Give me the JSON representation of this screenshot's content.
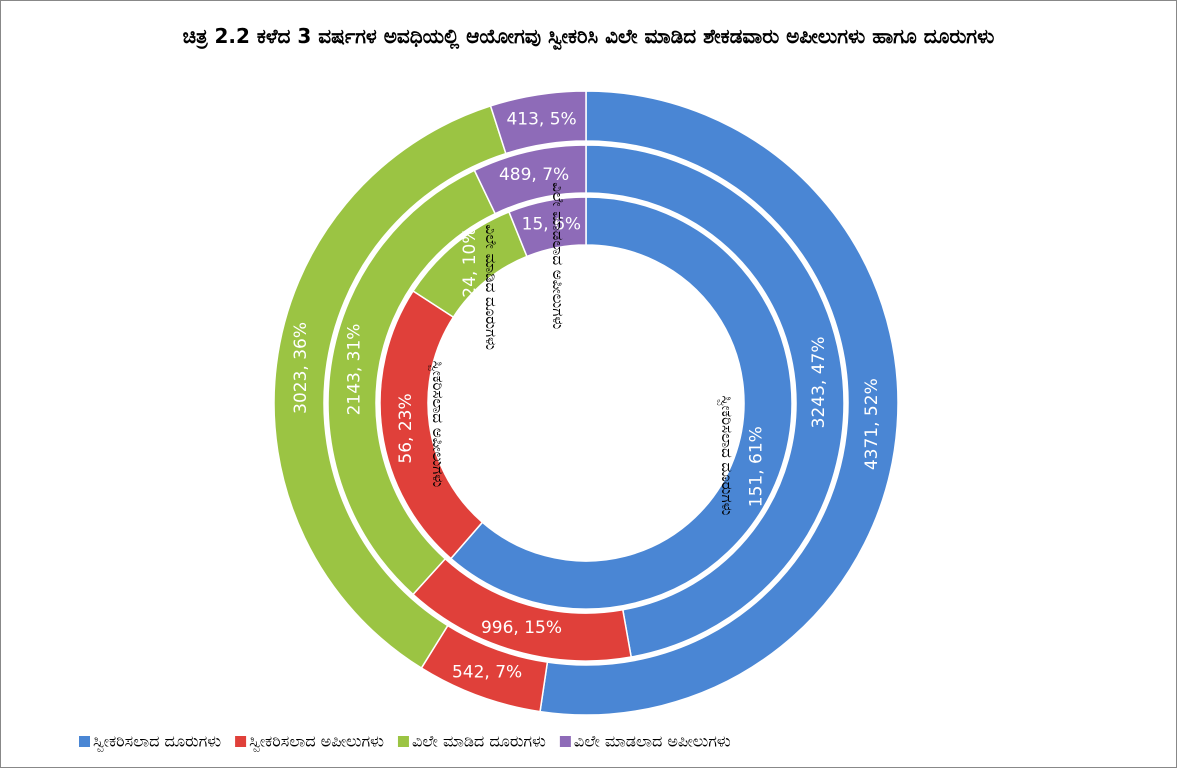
{
  "chart_data": {
    "type": "donut",
    "title": "ಚಿತ್ರ 2.2 ಕಳೆದ 3 ವರ್ಷಗಳ  ಅವಧಿಯಲ್ಲಿ ಆಯೋಗವು ಸ್ವೀಕರಿಸಿ ವಿಲೇ ಮಾಡಿದ ಶೇಕಡವಾರು ಅಪೀಲುಗಳು ಹಾಗೂ ದೂರುಗಳು",
    "categories": [
      "ಸ್ವೀಕರಿಸಲಾದ ದೂರುಗಳು",
      "ಸ್ವೀಕರಿಸಲಾದ ಅಪೀಲುಗಳು",
      "ವಿಲೇ ಮಾಡಿದ ದೂರುಗಳು",
      "ವಿಲೇ ಮಾಡಲಾದ ಅಪೀಲುಗಳು"
    ],
    "colors": [
      "#4a86d4",
      "#e0403a",
      "#9bc443",
      "#8e6bb8"
    ],
    "series": [
      {
        "values": [
          4371,
          542,
          3023,
          413
        ],
        "value_labels": [
          "4371, 52%",
          "542, 7%",
          "3023, 36%",
          "413, 5%"
        ]
      },
      {
        "values": [
          3243,
          996,
          2143,
          489
        ],
        "value_labels": [
          "3243, 47%",
          "996, 15%",
          "2143, 31%",
          "489, 7%"
        ]
      },
      {
        "values": [
          151,
          56,
          24,
          15
        ],
        "value_labels": [
          "151, 61%",
          "56, 23%",
          "24, 10%",
          "15, 6%"
        ]
      }
    ],
    "legend": "bottom"
  }
}
